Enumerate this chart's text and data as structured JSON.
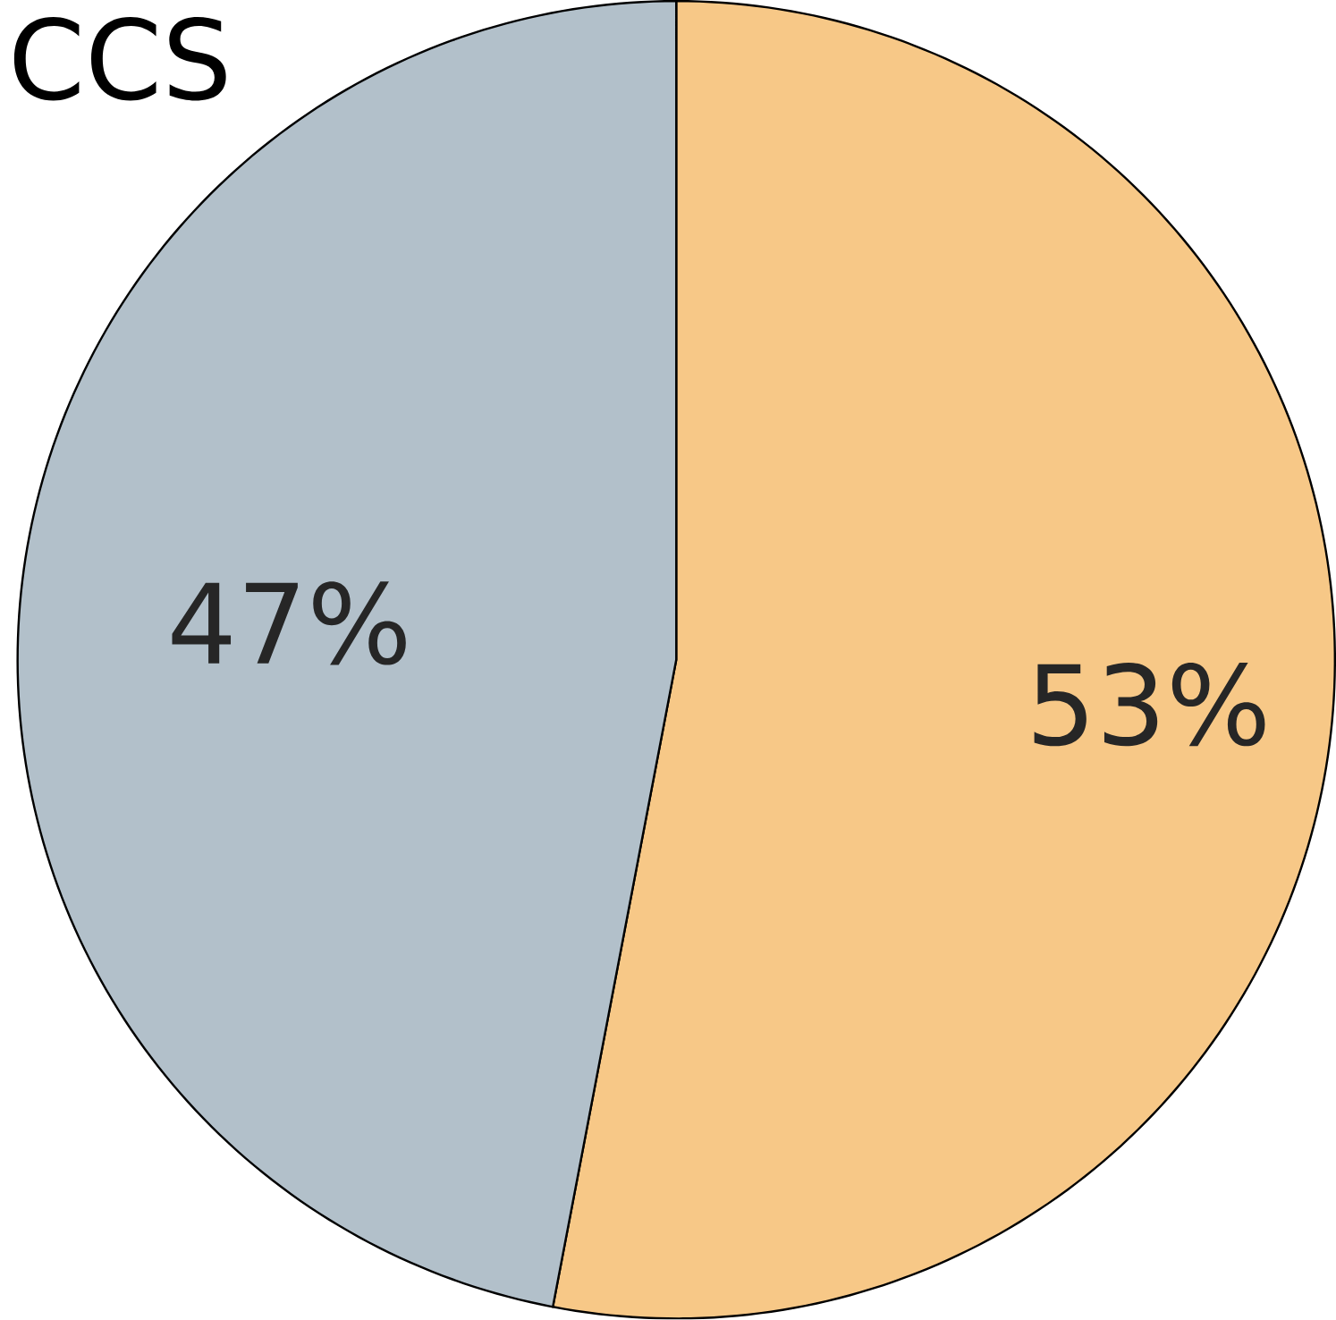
{
  "chart_data": {
    "type": "pie",
    "title": "CCS",
    "categories": [
      null,
      null
    ],
    "values": [
      53,
      47
    ],
    "colors": [
      "#f7c887",
      "#b2c0ca"
    ],
    "value_labels": [
      "53%",
      "47%"
    ]
  }
}
